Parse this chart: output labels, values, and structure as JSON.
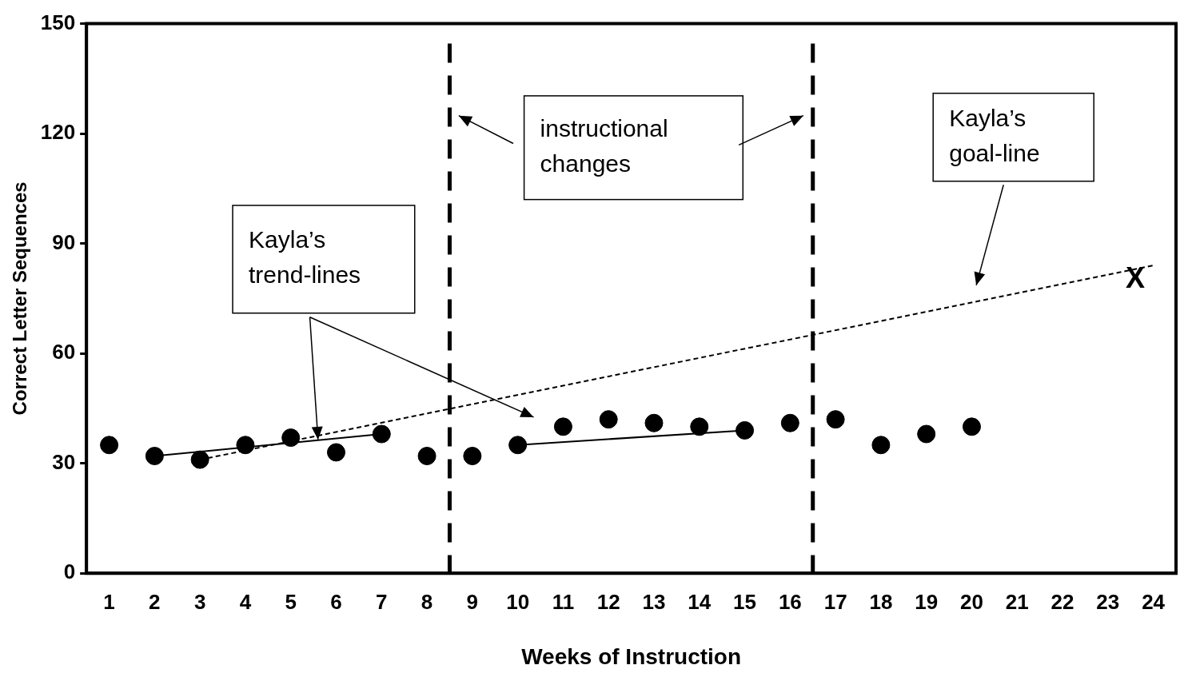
{
  "chart_data": {
    "type": "scatter",
    "xlabel": "Weeks of Instruction",
    "ylabel": "Correct Letter Sequences",
    "x": [
      1,
      2,
      3,
      4,
      5,
      6,
      7,
      8,
      9,
      10,
      11,
      12,
      13,
      14,
      15,
      16,
      17,
      18,
      19,
      20
    ],
    "xlim": [
      0.5,
      24.5
    ],
    "xticks": [
      1,
      2,
      3,
      4,
      5,
      6,
      7,
      8,
      9,
      10,
      11,
      12,
      13,
      14,
      15,
      16,
      17,
      18,
      19,
      20,
      21,
      22,
      23,
      24
    ],
    "ylim": [
      0,
      150
    ],
    "yticks": [
      0,
      30,
      60,
      90,
      120,
      150
    ],
    "grid": false,
    "legend": false,
    "series": [
      {
        "color": "#000000",
        "marker": "circle",
        "values": [
          35,
          32,
          31,
          35,
          37,
          33,
          38,
          32,
          32,
          35,
          40,
          42,
          41,
          40,
          39,
          41,
          42,
          35,
          38,
          40
        ]
      },
      {
        "type": "line",
        "color": "#000000",
        "line_style": "solid",
        "x": [
          2,
          7
        ],
        "values": [
          32,
          38
        ]
      },
      {
        "type": "line",
        "color": "#000000",
        "line_style": "solid",
        "x": [
          10,
          15
        ],
        "values": [
          35,
          39
        ]
      },
      {
        "type": "line",
        "color": "#000000",
        "line_style": "dashed",
        "x": [
          3,
          24
        ],
        "values": [
          31,
          84
        ]
      }
    ],
    "ref_lines": [
      {
        "axis": "x",
        "value": 8.5,
        "line_style": "dashed",
        "color": "#000000"
      },
      {
        "axis": "x",
        "value": 16.5,
        "line_style": "dashed",
        "color": "#000000"
      }
    ],
    "annotations": [
      "instructional changes",
      "Kayla’s goal-line",
      {
        "text": "Kayla’s trend-lines",
        "x": 5.6,
        "y": 36.5
      },
      "X"
    ]
  }
}
